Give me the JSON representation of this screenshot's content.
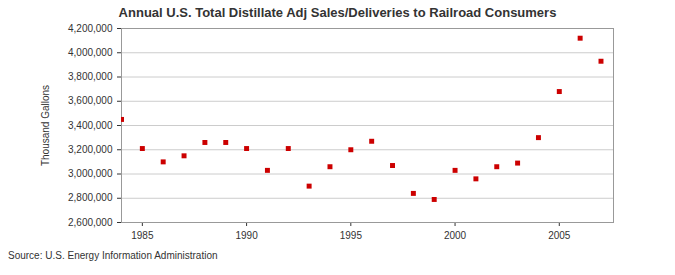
{
  "chart_data": {
    "type": "scatter",
    "title": "Annual U.S. Total Distillate Adj Sales/Deliveries to Railroad Consumers",
    "y_label": "Thousand Gallons",
    "caption": "Source: U.S. Energy Information Administration",
    "x": [
      1984,
      1985,
      1986,
      1987,
      1988,
      1989,
      1990,
      1991,
      1992,
      1993,
      1994,
      1995,
      1996,
      1997,
      1998,
      1999,
      2000,
      2001,
      2002,
      2003,
      2004,
      2005,
      2006,
      2007
    ],
    "values": [
      3450000,
      3210000,
      3100000,
      3150000,
      3260000,
      3260000,
      3210000,
      3030000,
      3210000,
      2900000,
      3060000,
      3200000,
      3270000,
      3070000,
      2840000,
      2790000,
      3030000,
      2960000,
      3060000,
      3090000,
      3300000,
      3680000,
      4120000,
      3930000
    ],
    "color": "#cc0000",
    "marker": "square",
    "xlim": [
      1984,
      2007.6
    ],
    "xticks": [
      1985,
      1990,
      1995,
      2000,
      2005
    ],
    "ylim": [
      2600000,
      4200000
    ],
    "yticks": [
      {
        "value": 2600000,
        "label": "2,600,000"
      },
      {
        "value": 2800000,
        "label": "2,800,000"
      },
      {
        "value": 3000000,
        "label": "3,000,000"
      },
      {
        "value": 3200000,
        "label": "3,200,000"
      },
      {
        "value": 3400000,
        "label": "3,400,000"
      },
      {
        "value": 3600000,
        "label": "3,600,000"
      },
      {
        "value": 3800000,
        "label": "3,800,000"
      },
      {
        "value": 4000000,
        "label": "4,000,000"
      },
      {
        "value": 4200000,
        "label": "4,200,000"
      }
    ],
    "grid": true
  }
}
